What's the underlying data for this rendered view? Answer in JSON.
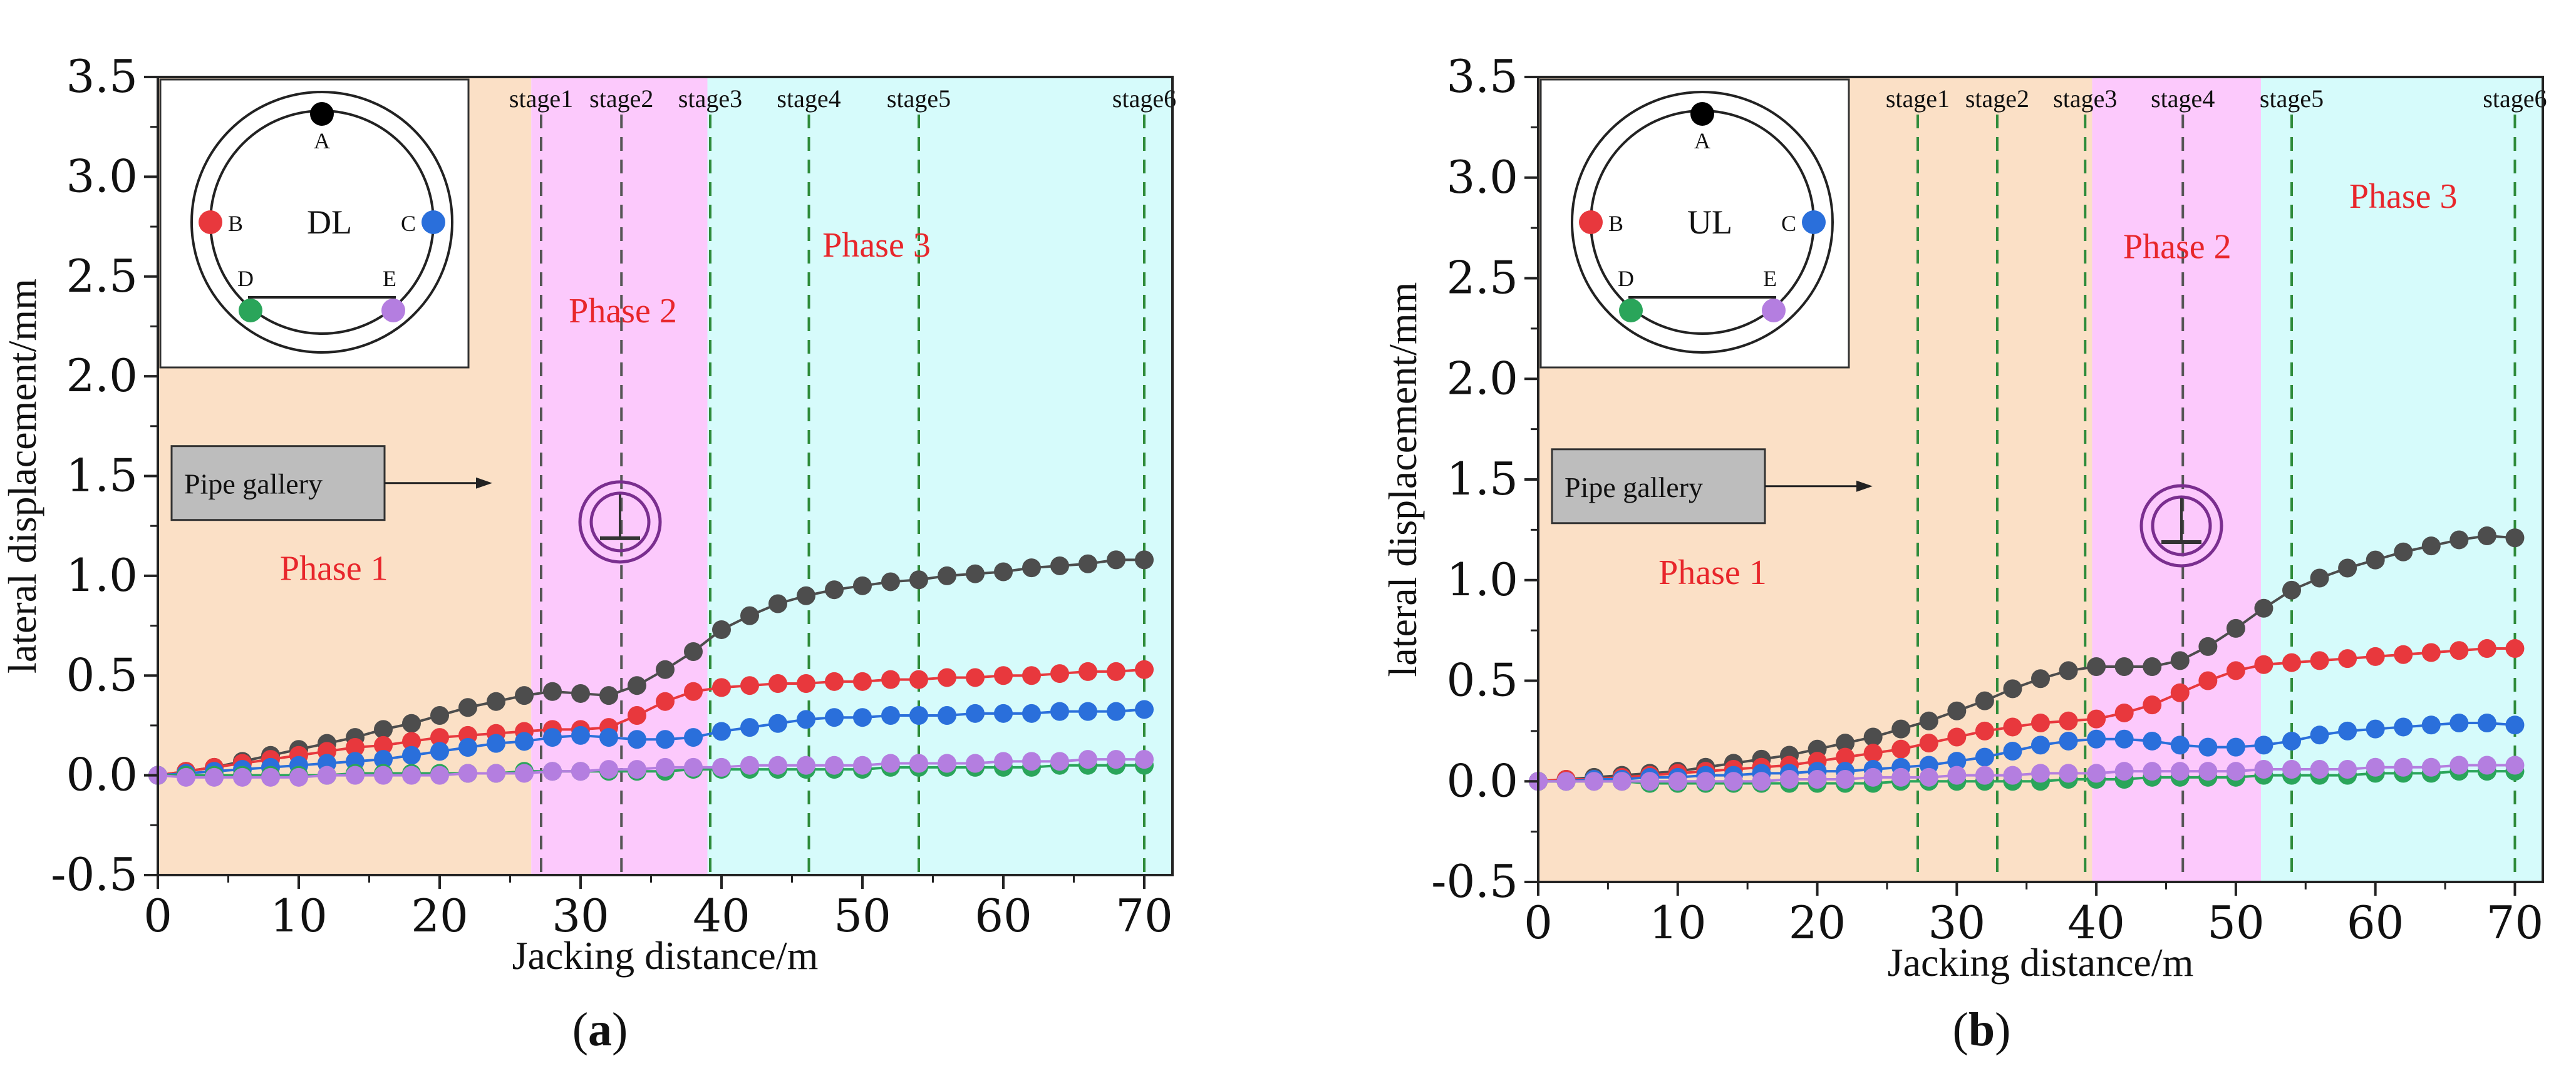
{
  "chart_data": [
    {
      "id": "a",
      "type": "line",
      "caption": "a",
      "xlabel": "Jacking distance/m",
      "ylabel": "lateral displacement/mm",
      "xlim": [
        0,
        72
      ],
      "ylim": [
        -0.5,
        3.5
      ],
      "xticks": [
        "0",
        "10",
        "20",
        "30",
        "40",
        "50",
        "60",
        "70"
      ],
      "xtick_values": [
        0,
        10,
        20,
        30,
        40,
        50,
        60,
        70
      ],
      "yticks": [
        "-0.5",
        "0.0",
        "0.5",
        "1.0",
        "1.5",
        "2.0",
        "2.5",
        "3.0",
        "3.5"
      ],
      "ytick_values": [
        -0.5,
        0.0,
        0.5,
        1.0,
        1.5,
        2.0,
        2.5,
        3.0,
        3.5
      ],
      "phases": [
        {
          "label": "Phase 1",
          "x0": 0,
          "x1": 26.5,
          "color": "#fbe0c6",
          "label_x": 12.5,
          "label_y": 0.98
        },
        {
          "label": "Phase 2",
          "x0": 26.5,
          "x1": 39,
          "color": "#fcc9fc",
          "label_x": 33,
          "label_y": 2.27
        },
        {
          "label": "Phase 3",
          "x0": 39,
          "x1": 72,
          "color": "#d6fbfb",
          "label_x": 51,
          "label_y": 2.6
        }
      ],
      "stages": [
        {
          "label": "stage1",
          "x": 27.2,
          "color": "#555555"
        },
        {
          "label": "stage2",
          "x": 32.9,
          "color": "#555555"
        },
        {
          "label": "stage3",
          "x": 39.2,
          "color": "#2e8b3a"
        },
        {
          "label": "stage4",
          "x": 46.2,
          "color": "#2e8b3a"
        },
        {
          "label": "stage5",
          "x": 54.0,
          "color": "#2e8b3a"
        },
        {
          "label": "stage6",
          "x": 70.0,
          "color": "#2e8b3a"
        }
      ],
      "inset": {
        "label": "DL",
        "points": [
          "A",
          "B",
          "C",
          "D",
          "E"
        ]
      },
      "annotation": "Pipe gallery",
      "series": [
        {
          "name": "A",
          "color": "#4d4d4d",
          "x": [
            0,
            2,
            4,
            6,
            8,
            10,
            12,
            14,
            16,
            18,
            20,
            22,
            24,
            26,
            28,
            30,
            32,
            34,
            36,
            38,
            40,
            42,
            44,
            46,
            48,
            50,
            52,
            54,
            56,
            58,
            60,
            62,
            64,
            66,
            68,
            70
          ],
          "values": [
            0,
            0.02,
            0.04,
            0.07,
            0.1,
            0.13,
            0.16,
            0.19,
            0.23,
            0.26,
            0.3,
            0.34,
            0.37,
            0.4,
            0.42,
            0.41,
            0.4,
            0.45,
            0.53,
            0.62,
            0.73,
            0.8,
            0.86,
            0.9,
            0.93,
            0.95,
            0.97,
            0.98,
            1.0,
            1.01,
            1.02,
            1.04,
            1.05,
            1.06,
            1.08,
            1.08
          ]
        },
        {
          "name": "B",
          "color": "#e8383d",
          "x": [
            0,
            2,
            4,
            6,
            8,
            10,
            12,
            14,
            16,
            18,
            20,
            22,
            24,
            26,
            28,
            30,
            32,
            34,
            36,
            38,
            40,
            42,
            44,
            46,
            48,
            50,
            52,
            54,
            56,
            58,
            60,
            62,
            64,
            66,
            68,
            70
          ],
          "values": [
            0,
            0.02,
            0.04,
            0.06,
            0.08,
            0.1,
            0.12,
            0.14,
            0.15,
            0.17,
            0.19,
            0.2,
            0.21,
            0.22,
            0.23,
            0.23,
            0.24,
            0.3,
            0.37,
            0.42,
            0.44,
            0.45,
            0.46,
            0.46,
            0.47,
            0.47,
            0.48,
            0.48,
            0.49,
            0.49,
            0.5,
            0.5,
            0.51,
            0.52,
            0.52,
            0.53
          ]
        },
        {
          "name": "C",
          "color": "#2a6fdb",
          "x": [
            0,
            2,
            4,
            6,
            8,
            10,
            12,
            14,
            16,
            18,
            20,
            22,
            24,
            26,
            28,
            30,
            32,
            34,
            36,
            38,
            40,
            42,
            44,
            46,
            48,
            50,
            52,
            54,
            56,
            58,
            60,
            62,
            64,
            66,
            68,
            70
          ],
          "values": [
            0,
            0.01,
            0.02,
            0.03,
            0.04,
            0.05,
            0.06,
            0.07,
            0.08,
            0.1,
            0.12,
            0.14,
            0.16,
            0.17,
            0.19,
            0.2,
            0.19,
            0.18,
            0.18,
            0.19,
            0.22,
            0.24,
            0.26,
            0.28,
            0.29,
            0.29,
            0.3,
            0.3,
            0.3,
            0.31,
            0.31,
            0.31,
            0.32,
            0.32,
            0.32,
            0.33
          ]
        },
        {
          "name": "D",
          "color": "#2aa55a",
          "x": [
            0,
            2,
            4,
            6,
            8,
            10,
            12,
            14,
            16,
            18,
            20,
            22,
            24,
            26,
            28,
            30,
            32,
            34,
            36,
            38,
            40,
            42,
            44,
            46,
            48,
            50,
            52,
            54,
            56,
            58,
            60,
            62,
            64,
            66,
            68,
            70
          ],
          "values": [
            0,
            0,
            0,
            0,
            0,
            0,
            0,
            0.01,
            0.01,
            0.01,
            0.01,
            0.01,
            0.01,
            0.02,
            0.02,
            0.02,
            0.02,
            0.02,
            0.02,
            0.03,
            0.03,
            0.03,
            0.03,
            0.03,
            0.03,
            0.03,
            0.04,
            0.04,
            0.04,
            0.04,
            0.04,
            0.04,
            0.05,
            0.05,
            0.05,
            0.05
          ]
        },
        {
          "name": "E",
          "color": "#b47ee0",
          "x": [
            0,
            2,
            4,
            6,
            8,
            10,
            12,
            14,
            16,
            18,
            20,
            22,
            24,
            26,
            28,
            30,
            32,
            34,
            36,
            38,
            40,
            42,
            44,
            46,
            48,
            50,
            52,
            54,
            56,
            58,
            60,
            62,
            64,
            66,
            68,
            70
          ],
          "values": [
            0,
            -0.01,
            -0.01,
            -0.01,
            -0.01,
            -0.01,
            0,
            0,
            0,
            0,
            0,
            0.01,
            0.01,
            0.01,
            0.02,
            0.02,
            0.03,
            0.03,
            0.04,
            0.04,
            0.04,
            0.05,
            0.05,
            0.05,
            0.05,
            0.05,
            0.06,
            0.06,
            0.06,
            0.06,
            0.07,
            0.07,
            0.07,
            0.08,
            0.08,
            0.08
          ]
        }
      ]
    },
    {
      "id": "b",
      "type": "line",
      "caption": "b",
      "xlabel": "Jacking distance/m",
      "ylabel": "lateral displacement/mm",
      "xlim": [
        0,
        72
      ],
      "ylim": [
        -0.5,
        3.5
      ],
      "xticks": [
        "0",
        "10",
        "20",
        "30",
        "40",
        "50",
        "60",
        "70"
      ],
      "xtick_values": [
        0,
        10,
        20,
        30,
        40,
        50,
        60,
        70
      ],
      "yticks": [
        "-0.5",
        "0.0",
        "0.5",
        "1.0",
        "1.5",
        "2.0",
        "2.5",
        "3.0",
        "3.5"
      ],
      "ytick_values": [
        -0.5,
        0.0,
        0.5,
        1.0,
        1.5,
        2.0,
        2.5,
        3.0,
        3.5
      ],
      "phases": [
        {
          "label": "Phase 1",
          "x0": 0,
          "x1": 39.7,
          "color": "#fbe0c6",
          "label_x": 12.5,
          "label_y": 0.98
        },
        {
          "label": "Phase 2",
          "x0": 39.7,
          "x1": 51.8,
          "color": "#fcc9fc",
          "label_x": 45.8,
          "label_y": 2.6
        },
        {
          "label": "Phase 3",
          "x0": 51.8,
          "x1": 72,
          "color": "#d6fbfb",
          "label_x": 62,
          "label_y": 2.85
        }
      ],
      "stages": [
        {
          "label": "stage1",
          "x": 27.2,
          "color": "#2e8b3a"
        },
        {
          "label": "stage2",
          "x": 32.9,
          "color": "#2e8b3a"
        },
        {
          "label": "stage3",
          "x": 39.2,
          "color": "#2e8b3a"
        },
        {
          "label": "stage4",
          "x": 46.2,
          "color": "#555555"
        },
        {
          "label": "stage5",
          "x": 54.0,
          "color": "#2e8b3a"
        },
        {
          "label": "stage6",
          "x": 70.0,
          "color": "#2e8b3a"
        }
      ],
      "inset": {
        "label": "UL",
        "points": [
          "A",
          "B",
          "C",
          "D",
          "E"
        ]
      },
      "annotation": "Pipe gallery",
      "series": [
        {
          "name": "A",
          "color": "#4d4d4d",
          "x": [
            0,
            2,
            4,
            6,
            8,
            10,
            12,
            14,
            16,
            18,
            20,
            22,
            24,
            26,
            28,
            30,
            32,
            34,
            36,
            38,
            40,
            42,
            44,
            46,
            48,
            50,
            52,
            54,
            56,
            58,
            60,
            62,
            64,
            66,
            68,
            70
          ],
          "values": [
            0,
            0.01,
            0.02,
            0.03,
            0.04,
            0.05,
            0.07,
            0.09,
            0.11,
            0.13,
            0.16,
            0.19,
            0.22,
            0.26,
            0.3,
            0.35,
            0.4,
            0.46,
            0.51,
            0.55,
            0.57,
            0.57,
            0.57,
            0.6,
            0.67,
            0.76,
            0.86,
            0.95,
            1.01,
            1.06,
            1.1,
            1.14,
            1.17,
            1.2,
            1.22,
            1.21
          ]
        },
        {
          "name": "B",
          "color": "#e8383d",
          "x": [
            0,
            2,
            4,
            6,
            8,
            10,
            12,
            14,
            16,
            18,
            20,
            22,
            24,
            26,
            28,
            30,
            32,
            34,
            36,
            38,
            40,
            42,
            44,
            46,
            48,
            50,
            52,
            54,
            56,
            58,
            60,
            62,
            64,
            66,
            68,
            70
          ],
          "values": [
            0,
            0.01,
            0.01,
            0.02,
            0.03,
            0.04,
            0.05,
            0.06,
            0.07,
            0.08,
            0.1,
            0.12,
            0.14,
            0.16,
            0.19,
            0.22,
            0.25,
            0.27,
            0.29,
            0.3,
            0.31,
            0.34,
            0.38,
            0.44,
            0.5,
            0.55,
            0.58,
            0.59,
            0.6,
            0.61,
            0.62,
            0.63,
            0.64,
            0.65,
            0.66,
            0.66
          ]
        },
        {
          "name": "C",
          "color": "#2a6fdb",
          "x": [
            0,
            2,
            4,
            6,
            8,
            10,
            12,
            14,
            16,
            18,
            20,
            22,
            24,
            26,
            28,
            30,
            32,
            34,
            36,
            38,
            40,
            42,
            44,
            46,
            48,
            50,
            52,
            54,
            56,
            58,
            60,
            62,
            64,
            66,
            68,
            70
          ],
          "values": [
            0,
            0,
            0.01,
            0.01,
            0.02,
            0.02,
            0.03,
            0.03,
            0.04,
            0.04,
            0.05,
            0.05,
            0.06,
            0.07,
            0.08,
            0.1,
            0.12,
            0.15,
            0.18,
            0.2,
            0.21,
            0.21,
            0.2,
            0.18,
            0.17,
            0.17,
            0.18,
            0.2,
            0.23,
            0.25,
            0.26,
            0.27,
            0.28,
            0.29,
            0.29,
            0.28
          ]
        },
        {
          "name": "D",
          "color": "#2aa55a",
          "x": [
            0,
            2,
            4,
            6,
            8,
            10,
            12,
            14,
            16,
            18,
            20,
            22,
            24,
            26,
            28,
            30,
            32,
            34,
            36,
            38,
            40,
            42,
            44,
            46,
            48,
            50,
            52,
            54,
            56,
            58,
            60,
            62,
            64,
            66,
            68,
            70
          ],
          "values": [
            0,
            0,
            0,
            0,
            -0.01,
            -0.01,
            -0.01,
            -0.01,
            -0.01,
            -0.01,
            -0.01,
            -0.01,
            -0.01,
            0,
            0,
            0,
            0,
            0,
            0,
            0.01,
            0.01,
            0.01,
            0.02,
            0.02,
            0.02,
            0.02,
            0.03,
            0.03,
            0.03,
            0.03,
            0.04,
            0.04,
            0.04,
            0.05,
            0.05,
            0.05
          ]
        },
        {
          "name": "E",
          "color": "#b47ee0",
          "x": [
            0,
            2,
            4,
            6,
            8,
            10,
            12,
            14,
            16,
            18,
            20,
            22,
            24,
            26,
            28,
            30,
            32,
            34,
            36,
            38,
            40,
            42,
            44,
            46,
            48,
            50,
            52,
            54,
            56,
            58,
            60,
            62,
            64,
            66,
            68,
            70
          ],
          "values": [
            0,
            0,
            0,
            0,
            0,
            0,
            0,
            0,
            0,
            0.01,
            0.01,
            0.01,
            0.02,
            0.02,
            0.02,
            0.03,
            0.03,
            0.03,
            0.04,
            0.04,
            0.04,
            0.05,
            0.05,
            0.05,
            0.05,
            0.05,
            0.06,
            0.06,
            0.06,
            0.06,
            0.07,
            0.07,
            0.07,
            0.08,
            0.08,
            0.08
          ]
        }
      ]
    }
  ]
}
